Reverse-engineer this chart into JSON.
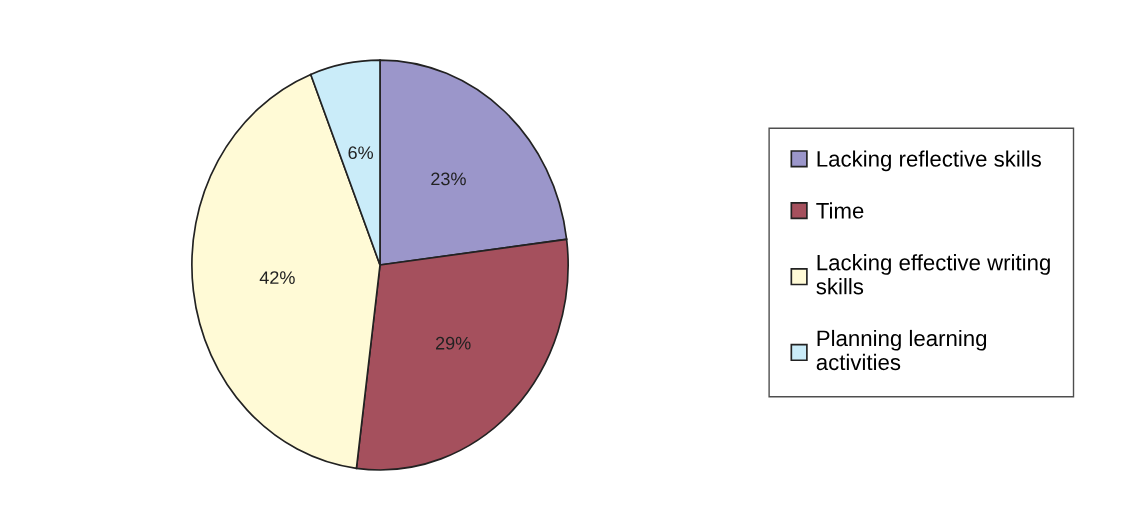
{
  "chart_data": {
    "type": "pie",
    "categories": [
      "Lacking reflective skills",
      "Time",
      "Lacking effective writing\nskills",
      "Planning learning\nactivities"
    ],
    "values": [
      23,
      29,
      42,
      6
    ],
    "colors": [
      "#9b96ca",
      "#a5505d",
      "#fffad6",
      "#caecf9"
    ],
    "value_labels": [
      "23%",
      "29%",
      "42%",
      "6%"
    ],
    "legend": "right"
  }
}
